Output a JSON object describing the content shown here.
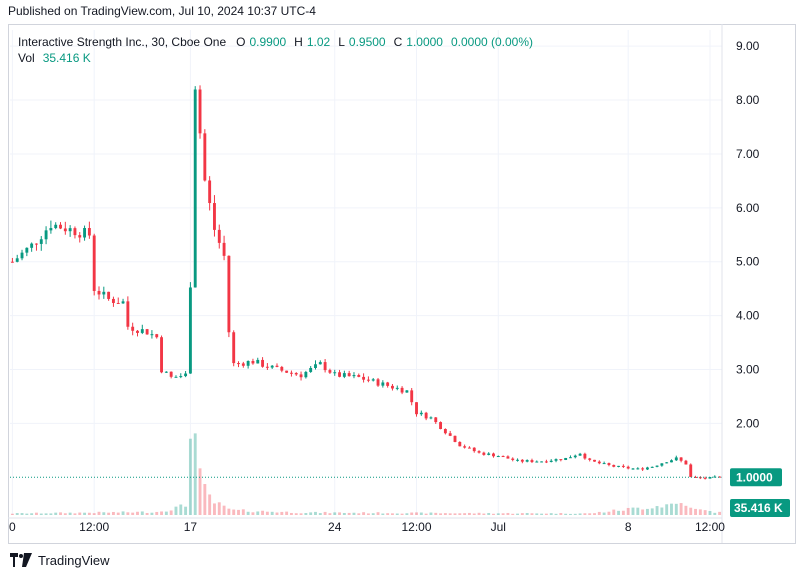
{
  "header": {
    "published": "Published on TradingView.com, Jul 10, 2024 10:37 UTC-4"
  },
  "legend": {
    "symbol": "Interactive Strength Inc., 30, Cboe One",
    "o_label": "O",
    "o_value": "0.9900",
    "h_label": "H",
    "h_value": "1.02",
    "l_label": "L",
    "l_value": "0.9500",
    "c_label": "C",
    "c_value": "1.0000",
    "change": "0.0000 (0.00%)",
    "vol_label": "Vol",
    "vol_value": "35.416 K"
  },
  "footer": {
    "brand": "TradingView",
    "logo_icon": "tradingview-logo-icon"
  },
  "colors": {
    "up": "#089981",
    "down": "#f23645",
    "grid": "#f0f3fa",
    "badge": "#089981"
  },
  "chart_data": {
    "type": "candlestick",
    "title": "",
    "ylim": [
      0.3,
      9.3
    ],
    "y_ticks": [
      "9.00",
      "8.00",
      "7.00",
      "6.00",
      "5.00",
      "4.00",
      "3.00",
      "2.00"
    ],
    "x_ticks": [
      "0",
      "12:00",
      "17",
      "24",
      "12:00",
      "Jul",
      "8",
      "12:00"
    ],
    "last_price": "1.0000",
    "last_volume": "35.416 K",
    "grid": true,
    "price_path": [
      [
        0,
        5.0
      ],
      [
        4,
        5.3
      ],
      [
        8,
        5.7
      ],
      [
        12,
        5.6
      ],
      [
        16,
        5.5
      ],
      [
        17,
        4.5
      ],
      [
        20,
        4.3
      ],
      [
        23,
        4.25
      ],
      [
        24,
        3.8
      ],
      [
        28,
        3.7
      ],
      [
        30,
        3.6
      ],
      [
        31,
        3.0
      ],
      [
        33,
        2.85
      ],
      [
        36,
        2.9
      ],
      [
        37,
        4.6
      ],
      [
        38,
        8.3
      ],
      [
        40,
        6.5
      ],
      [
        42,
        5.6
      ],
      [
        44,
        5.1
      ],
      [
        45,
        3.7
      ],
      [
        46,
        3.1
      ],
      [
        50,
        3.15
      ],
      [
        55,
        3.0
      ],
      [
        60,
        2.9
      ],
      [
        64,
        3.1
      ],
      [
        67,
        2.9
      ],
      [
        72,
        2.85
      ],
      [
        78,
        2.7
      ],
      [
        82,
        2.6
      ],
      [
        84,
        2.2
      ],
      [
        87,
        2.1
      ],
      [
        90,
        1.85
      ],
      [
        93,
        1.6
      ],
      [
        97,
        1.45
      ],
      [
        101,
        1.4
      ],
      [
        105,
        1.3
      ],
      [
        110,
        1.3
      ],
      [
        115,
        1.35
      ],
      [
        118,
        1.45
      ],
      [
        120,
        1.3
      ],
      [
        125,
        1.2
      ],
      [
        130,
        1.15
      ],
      [
        133,
        1.2
      ],
      [
        136,
        1.3
      ],
      [
        138,
        1.35
      ],
      [
        140,
        1.25
      ],
      [
        141,
        1.0
      ],
      [
        144,
        0.98
      ],
      [
        147,
        1.0
      ]
    ],
    "volume_path": [
      [
        0,
        0.05
      ],
      [
        30,
        0.1
      ],
      [
        36,
        0.3
      ],
      [
        37,
        3.5
      ],
      [
        38,
        2.5
      ],
      [
        39,
        1.2
      ],
      [
        40,
        0.8
      ],
      [
        42,
        0.4
      ],
      [
        44,
        0.25
      ],
      [
        46,
        0.15
      ],
      [
        60,
        0.08
      ],
      [
        90,
        0.06
      ],
      [
        120,
        0.05
      ],
      [
        140,
        0.4
      ],
      [
        141,
        0.2
      ],
      [
        147,
        0.08
      ]
    ]
  }
}
